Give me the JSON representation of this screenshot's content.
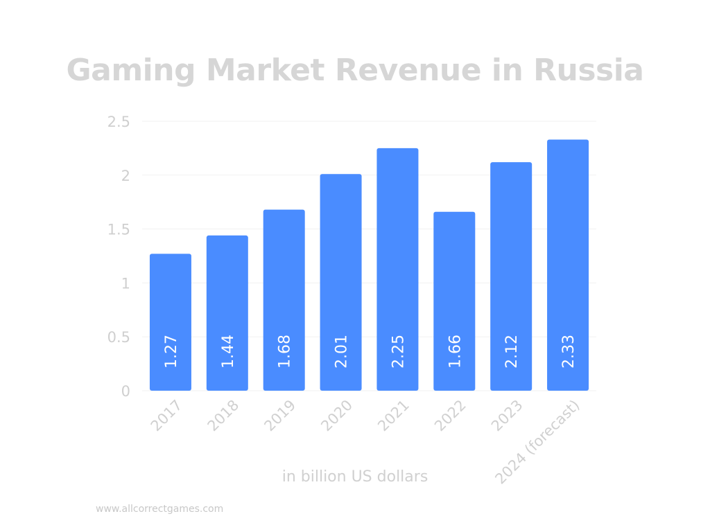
{
  "chart_data": {
    "type": "bar",
    "title": "Gaming Market Revenue in Russia",
    "xlabel": "in billion US dollars",
    "ylabel": "",
    "categories": [
      "2017",
      "2018",
      "2019",
      "2020",
      "2021",
      "2022",
      "2023",
      "2024 (forecast)"
    ],
    "values": [
      1.27,
      1.44,
      1.68,
      2.01,
      2.25,
      1.66,
      2.12,
      2.33
    ],
    "data_labels": [
      "1.27",
      "1.44",
      "1.68",
      "2.01",
      "2.25",
      "1.66",
      "2.12",
      "2.33"
    ],
    "ylim": [
      0,
      2.5
    ],
    "yticks": [
      0,
      0.5,
      1,
      1.5,
      2,
      2.5
    ],
    "ytick_labels": [
      "0",
      "0.5",
      "1",
      "1.5",
      "2",
      "2.5"
    ],
    "grid": true,
    "bar_color": "#4a8cff"
  },
  "footer": {
    "source": "www.allcorrectgames.com"
  }
}
